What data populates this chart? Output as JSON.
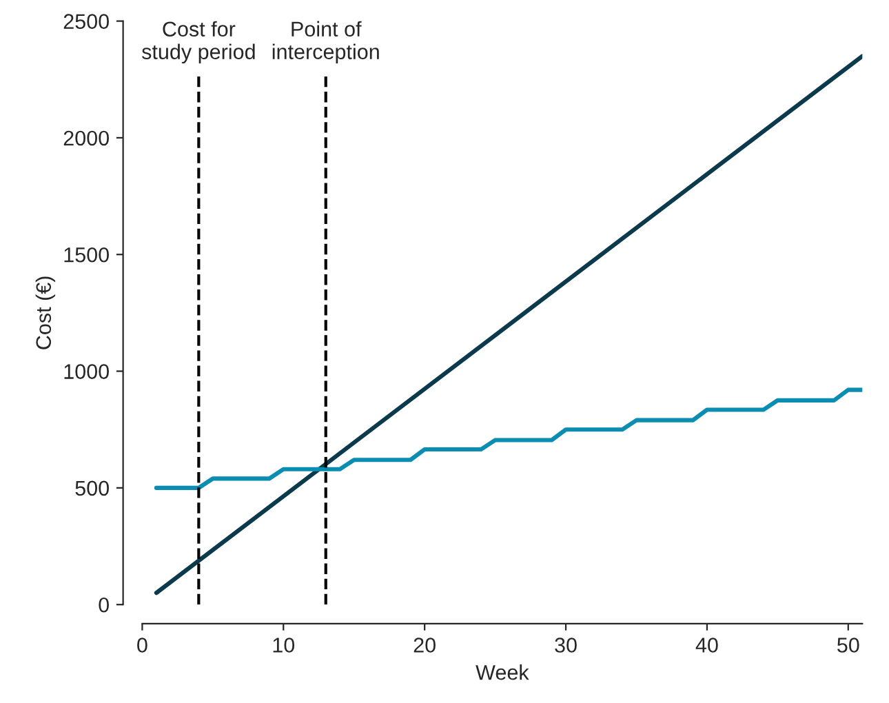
{
  "chart_data": {
    "type": "line",
    "xlabel": "Week",
    "ylabel": "Cost (€)",
    "series": [
      {
        "color": "#0b3a4d",
        "x": [
          1,
          51
        ],
        "values": [
          50,
          2350
        ]
      },
      {
        "color": "#0a8db0",
        "type": "line",
        "x": [
          1,
          4,
          5,
          9,
          10,
          14,
          15,
          19,
          20,
          24,
          25,
          29,
          30,
          34,
          35,
          39,
          40,
          44,
          45,
          49,
          50,
          51
        ],
        "values": [
          500,
          500,
          540,
          540,
          580,
          580,
          620,
          620,
          665,
          665,
          705,
          705,
          750,
          750,
          790,
          790,
          835,
          835,
          875,
          875,
          920,
          920
        ]
      }
    ],
    "ref_lines": [
      {
        "axis": "x",
        "value": 4,
        "label": "Cost for\nstudy period",
        "color": "#000000",
        "line_style": "dashed"
      },
      {
        "axis": "x",
        "value": 13,
        "label": "Point of\ninterception",
        "color": "#000000",
        "line_style": "dashed"
      }
    ],
    "xlim": [
      0,
      51
    ],
    "ylim": [
      0,
      2500
    ],
    "xticks": [
      0,
      10,
      20,
      30,
      40,
      50
    ],
    "yticks": [
      0,
      500,
      1000,
      1500,
      2000,
      2500
    ],
    "grid": false,
    "legend": false,
    "marker": "none",
    "line_style": "solid"
  }
}
